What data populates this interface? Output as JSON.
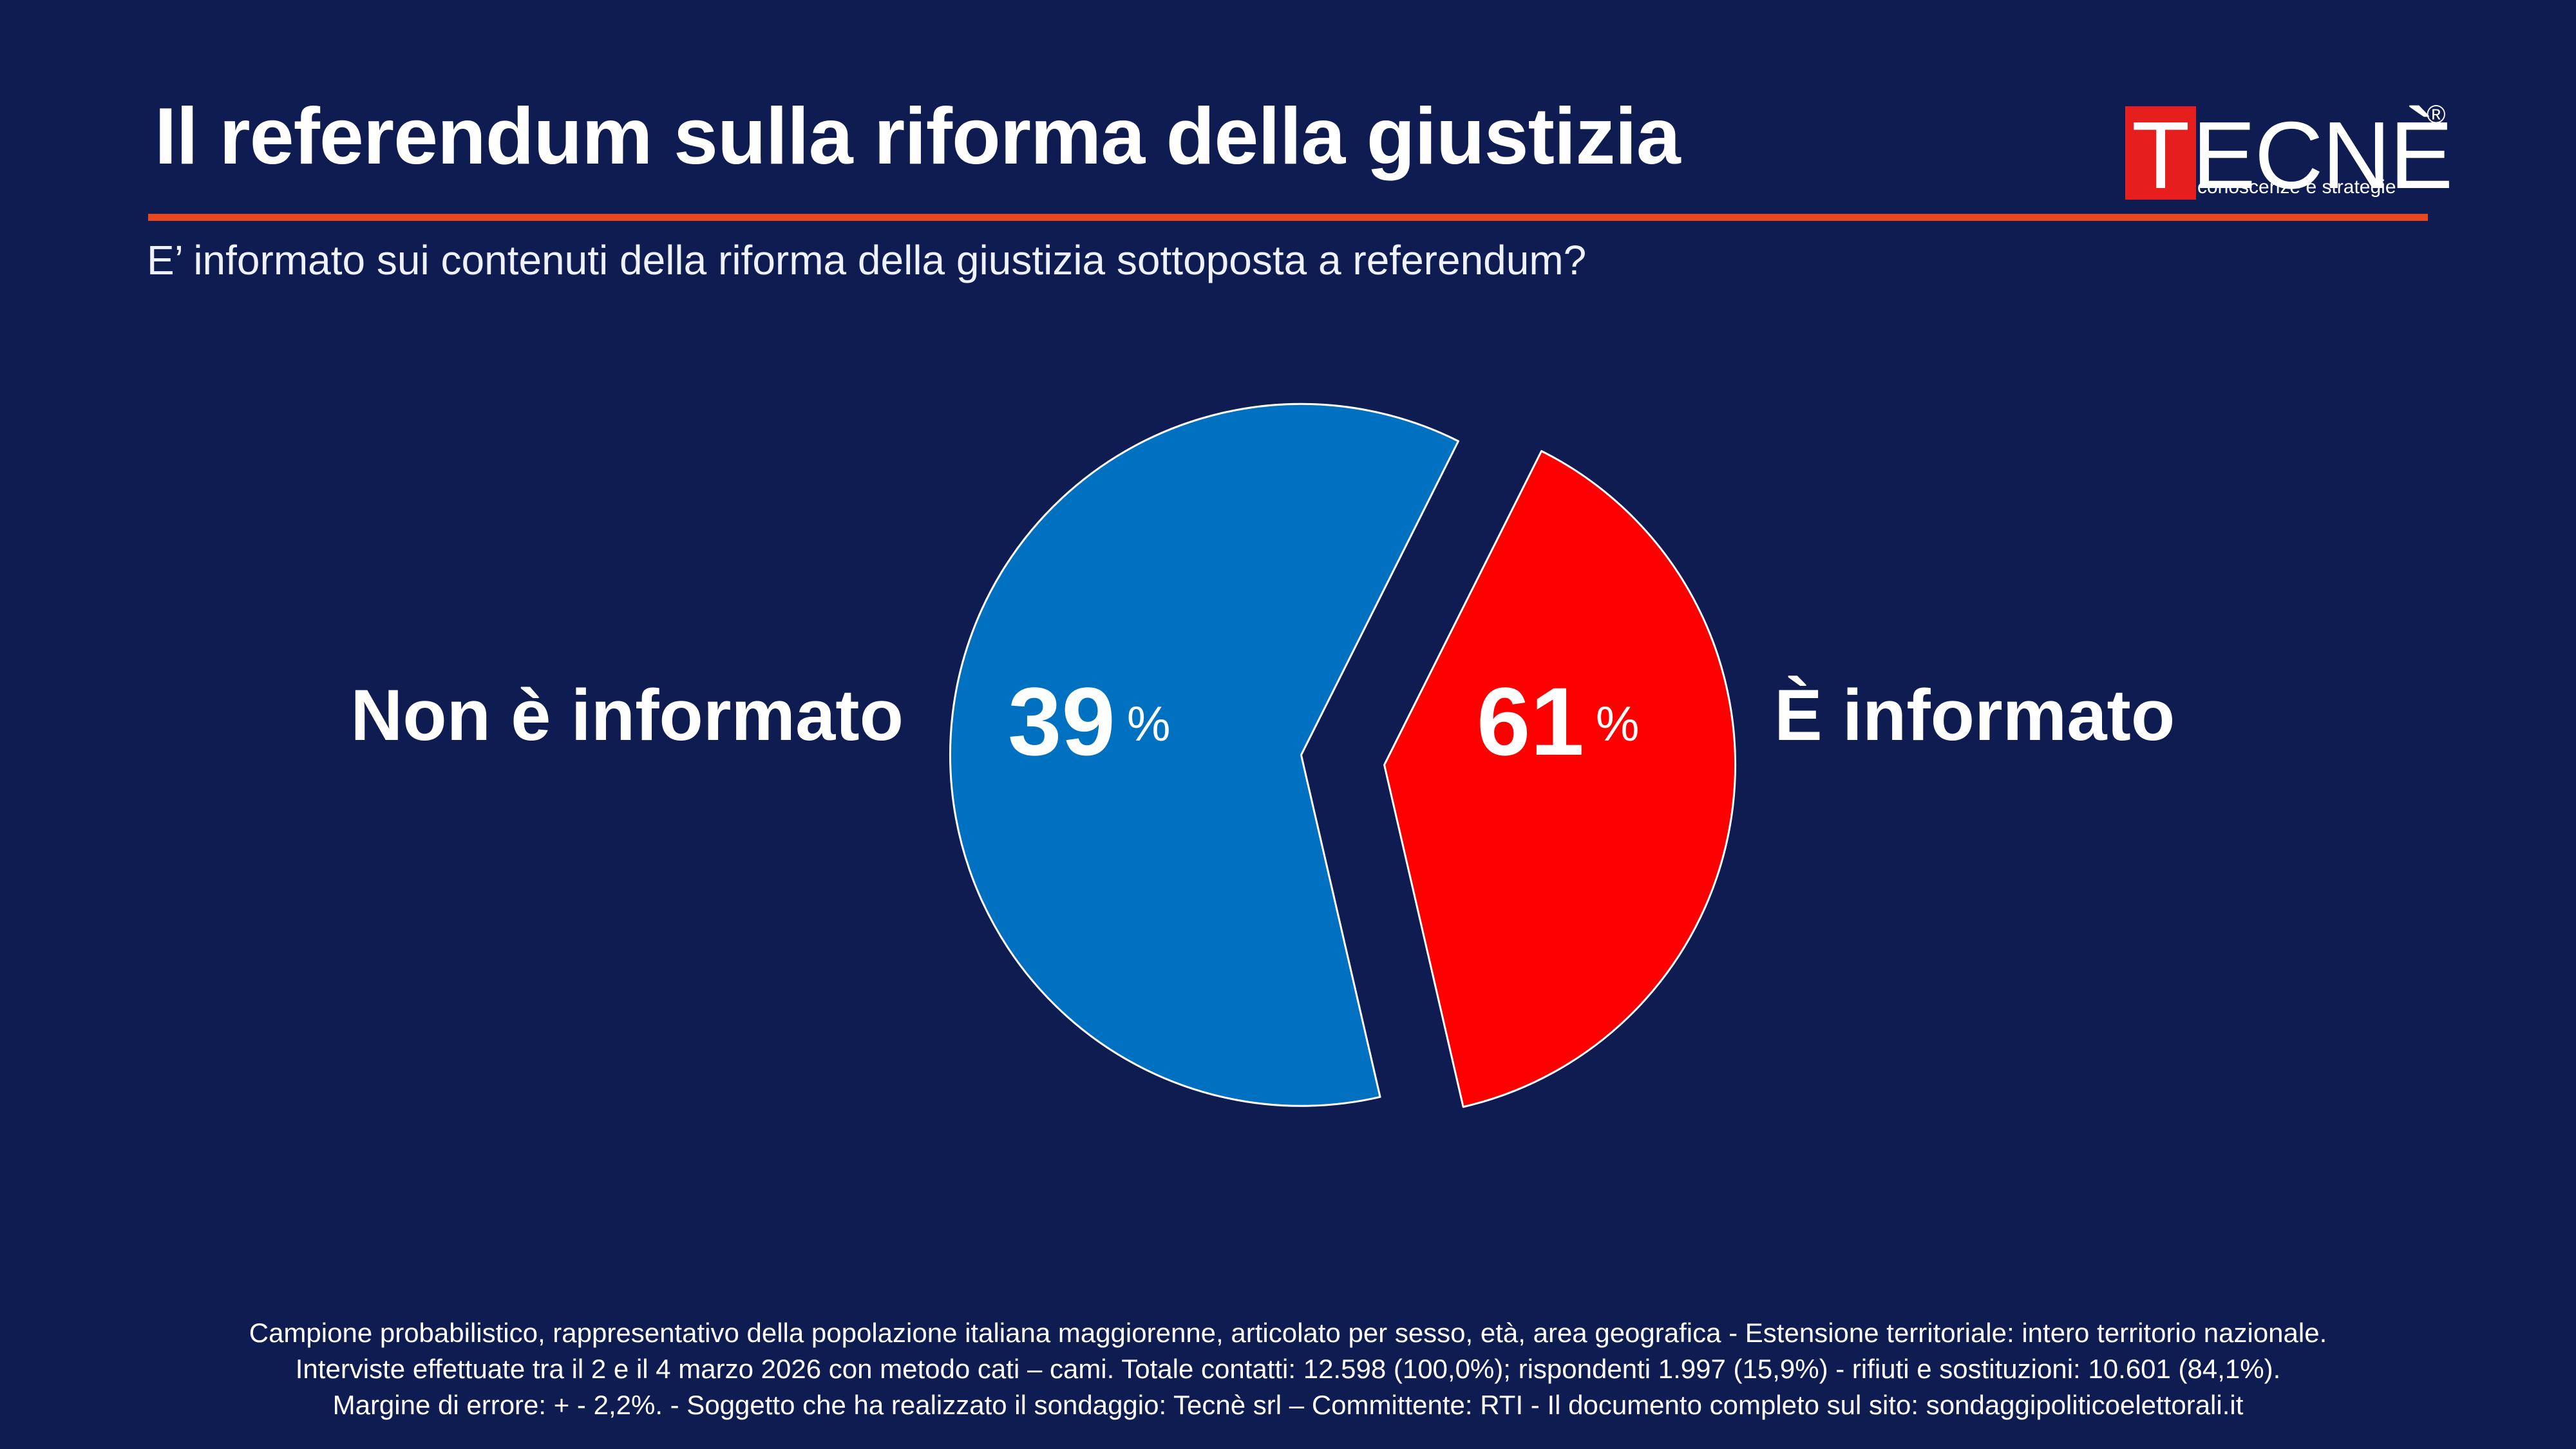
{
  "title": "Il referendum sulla riforma della giustizia",
  "subtitle": "E’ informato sui contenuti della riforma della giustizia sottoposta a referendum?",
  "logo": {
    "initial": "T",
    "rest": "ECNÈ",
    "registered": "®",
    "tagline": "conoscenze e strategie"
  },
  "colors": {
    "background": "#0f1c52",
    "accent_rule": "#e8481f",
    "non_informato": "#ff0000",
    "informato": "#0070c0"
  },
  "chart_data": {
    "type": "pie",
    "categories": [
      "Non è informato",
      "È informato"
    ],
    "values": [
      39,
      61
    ],
    "unit": "%",
    "value_labels": [
      "39",
      "61"
    ],
    "colors": [
      "#ff0000",
      "#0070c0"
    ],
    "exploded": true
  },
  "footer": [
    "Campione probabilistico, rappresentativo della popolazione italiana maggiorenne, articolato per sesso, età, area geografica - Estensione territoriale: intero territorio nazionale.",
    "Interviste effettuate tra il 2 e il 4 marzo 2026 con metodo cati – cami. Totale contatti: 12.598 (100,0%); rispondenti 1.997 (15,9%) - rifiuti e sostituzioni: 10.601 (84,1%).",
    "Margine di errore: + - 2,2%.  - Soggetto che ha realizzato il sondaggio: Tecnè srl – Committente: RTI - Il documento completo sul sito: sondaggipoliticoelettorali.it"
  ]
}
